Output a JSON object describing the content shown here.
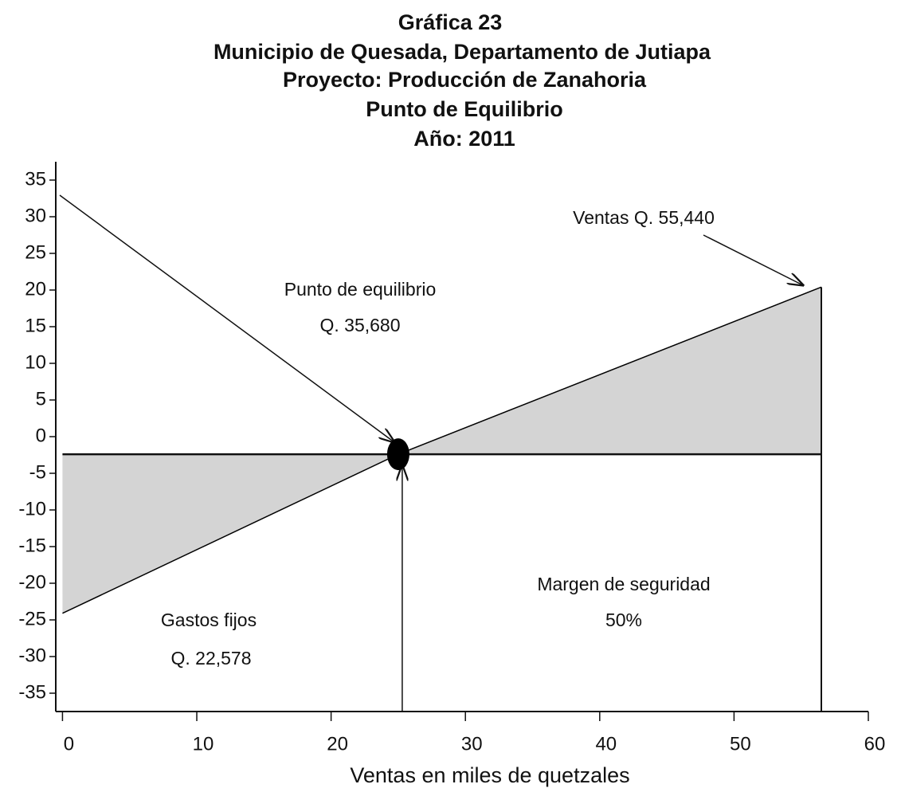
{
  "chart_data": {
    "type": "line",
    "title": [
      "Gráfica 23",
      "Municipio de Quesada, Departamento de Jutiapa",
      "Proyecto: Producción de Zanahoria",
      "Punto de Equilibrio",
      "Año: 2011"
    ],
    "x_label": "Ventas en miles de quetzales",
    "x": [
      0,
      25,
      56.5
    ],
    "series": [
      {
        "color": "#000000",
        "values": [
          -24.1,
          -2.4,
          20.4
        ]
      }
    ],
    "baseline": {
      "x": [
        0,
        56.5
      ],
      "values": [
        -2.4,
        -2.4
      ]
    },
    "xlim": [
      -0.5,
      60
    ],
    "xticks": [
      0,
      10,
      20,
      30,
      40,
      50,
      60
    ],
    "ylim": [
      -37.5,
      37.5
    ],
    "yticks": [
      -35,
      -30,
      -25,
      -20,
      -15,
      -10,
      -5,
      0,
      5,
      10,
      15,
      20,
      25,
      30,
      35
    ],
    "fill_color": "#d4d4d4",
    "annotations": [
      "Ventas  Q. 55,440",
      "Punto de equilibrio",
      "Q. 35,680",
      "Margen de seguridad",
      "50%",
      "Gastos fijos",
      "Q. 22,578"
    ]
  }
}
